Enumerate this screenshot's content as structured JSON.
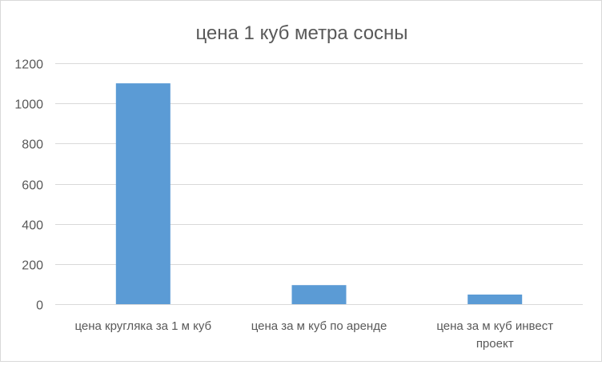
{
  "chart_data": {
    "type": "bar",
    "title": "цена 1 куб метра сосны",
    "categories": [
      [
        "цена кругляка за 1 м куб"
      ],
      [
        "цена за м куб по аренде"
      ],
      [
        "цена за м куб инвест",
        "проект"
      ]
    ],
    "values": [
      1100,
      95,
      48
    ],
    "ylim": [
      0,
      1200
    ],
    "yticks": [
      0,
      200,
      400,
      600,
      800,
      1000,
      1200
    ],
    "ytick_labels": [
      "0",
      "200",
      "400",
      "600",
      "800",
      "1000",
      "1200"
    ],
    "xlabel": "",
    "ylabel": "",
    "grid": true,
    "legend": "none",
    "colors": {
      "bar": "#5b9bd5",
      "grid": "#d9d9d9",
      "text": "#595959"
    }
  }
}
